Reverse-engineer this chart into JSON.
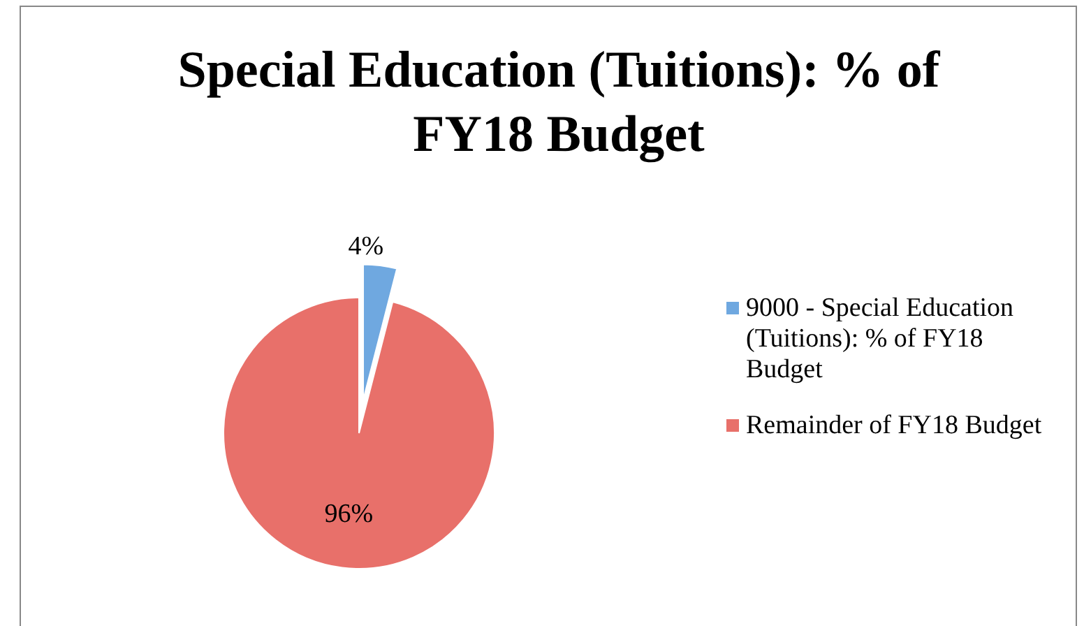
{
  "chart_data": {
    "type": "pie",
    "title": "Special Education (Tuitions): % of FY18 Budget",
    "categories": [
      "9000 - Special Education (Tuitions): % of FY18 Budget",
      "Remainder of FY18 Budget"
    ],
    "values": [
      4,
      96
    ],
    "colors": [
      "#6fa8e0",
      "#e8706a"
    ],
    "value_labels": [
      "4%",
      "96%"
    ],
    "legend": "right"
  }
}
